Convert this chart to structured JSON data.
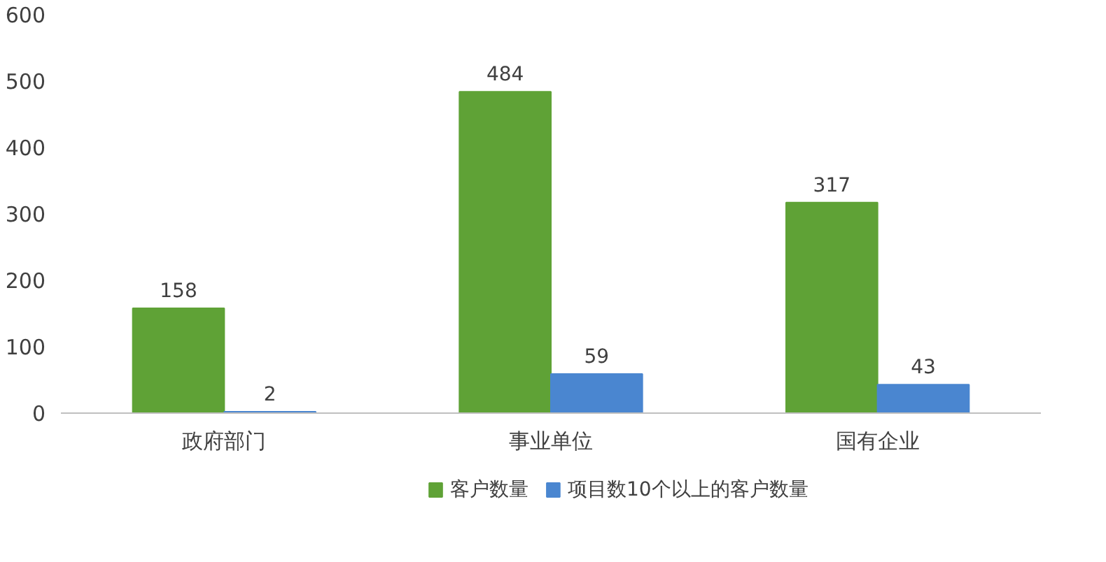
{
  "chart_data": {
    "type": "bar",
    "categories": [
      "政府部门",
      "事业单位",
      "国有企业"
    ],
    "series": [
      {
        "name": "客户数量",
        "color": "#5fa236",
        "values": [
          158,
          484,
          317
        ]
      },
      {
        "name": "项目数10个以上的客户数量",
        "color": "#4a86d0",
        "values": [
          2,
          59,
          43
        ]
      }
    ],
    "ylim": [
      0,
      600
    ],
    "yticks": [
      0,
      100,
      200,
      300,
      400,
      500,
      600
    ],
    "grid": false,
    "legend": "bottom",
    "data_labels": true
  }
}
